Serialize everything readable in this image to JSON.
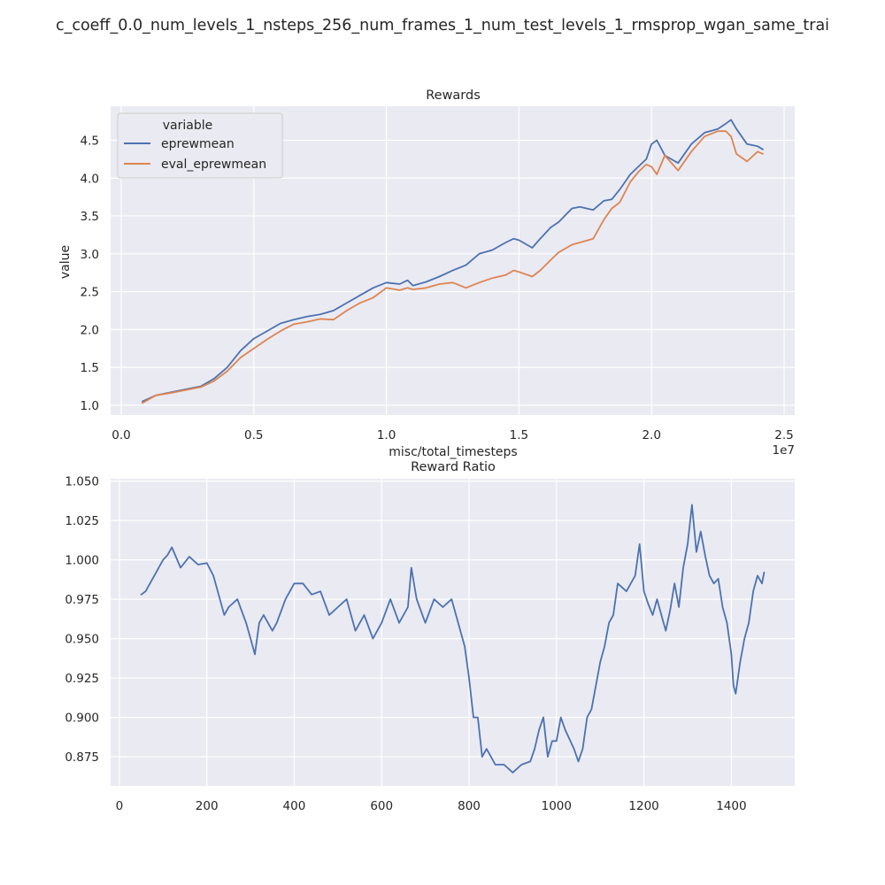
{
  "figure": {
    "suptitle": "c_coeff_0.0_num_levels_1_nsteps_256_num_frames_1_num_test_levels_1_rmsprop_wgan_same_trai"
  },
  "colors": {
    "plot_bg": "#eaeaf2",
    "grid": "#ffffff",
    "text": "#262626",
    "blue": "#4c72b0",
    "orange": "#dd8452"
  },
  "chart_data": [
    {
      "type": "line",
      "title": "Rewards",
      "xlabel": "misc/total_timesteps",
      "ylabel": "value",
      "x_offset_label": "1e7",
      "xlim": [
        -0.04,
        2.54
      ],
      "ylim": [
        0.87,
        4.95
      ],
      "xticks": [
        0.0,
        0.5,
        1.0,
        1.5,
        2.0,
        2.5
      ],
      "xtick_labels": [
        "0.0",
        "0.5",
        "1.0",
        "1.5",
        "2.0",
        "2.5"
      ],
      "yticks": [
        1.0,
        1.5,
        2.0,
        2.5,
        3.0,
        3.5,
        4.0,
        4.5
      ],
      "ytick_labels": [
        "1.0",
        "1.5",
        "2.0",
        "2.5",
        "3.0",
        "3.5",
        "4.0",
        "4.5"
      ],
      "grid": true,
      "legend": {
        "title": "variable",
        "position": "upper-left"
      },
      "series": [
        {
          "name": "eprewmean",
          "color": "#4c72b0",
          "x": [
            0.08,
            0.13,
            0.2,
            0.3,
            0.35,
            0.4,
            0.45,
            0.5,
            0.55,
            0.6,
            0.65,
            0.7,
            0.75,
            0.8,
            0.85,
            0.9,
            0.95,
            1.0,
            1.05,
            1.08,
            1.1,
            1.15,
            1.2,
            1.25,
            1.3,
            1.35,
            1.4,
            1.45,
            1.48,
            1.5,
            1.55,
            1.58,
            1.62,
            1.65,
            1.7,
            1.73,
            1.78,
            1.82,
            1.85,
            1.88,
            1.92,
            1.95,
            1.98,
            2.0,
            2.02,
            2.05,
            2.1,
            2.15,
            2.2,
            2.25,
            2.28,
            2.3,
            2.32,
            2.36,
            2.4,
            2.42
          ],
          "y": [
            1.05,
            1.13,
            1.18,
            1.25,
            1.35,
            1.5,
            1.72,
            1.88,
            1.98,
            2.08,
            2.13,
            2.17,
            2.2,
            2.25,
            2.35,
            2.45,
            2.55,
            2.62,
            2.6,
            2.65,
            2.58,
            2.63,
            2.7,
            2.78,
            2.85,
            3.0,
            3.05,
            3.15,
            3.2,
            3.18,
            3.08,
            3.2,
            3.35,
            3.42,
            3.6,
            3.62,
            3.58,
            3.7,
            3.72,
            3.85,
            4.05,
            4.15,
            4.25,
            4.45,
            4.5,
            4.3,
            4.2,
            4.45,
            4.6,
            4.65,
            4.72,
            4.77,
            4.65,
            4.45,
            4.42,
            4.38
          ]
        },
        {
          "name": "eval_eprewmean",
          "color": "#dd8452",
          "x": [
            0.08,
            0.13,
            0.2,
            0.3,
            0.35,
            0.4,
            0.45,
            0.5,
            0.55,
            0.6,
            0.65,
            0.7,
            0.75,
            0.8,
            0.85,
            0.9,
            0.95,
            1.0,
            1.05,
            1.08,
            1.1,
            1.15,
            1.2,
            1.25,
            1.3,
            1.35,
            1.4,
            1.45,
            1.48,
            1.5,
            1.55,
            1.58,
            1.62,
            1.65,
            1.7,
            1.73,
            1.78,
            1.82,
            1.85,
            1.88,
            1.92,
            1.95,
            1.98,
            2.0,
            2.02,
            2.05,
            2.1,
            2.15,
            2.2,
            2.25,
            2.28,
            2.3,
            2.32,
            2.36,
            2.4,
            2.42
          ],
          "y": [
            1.03,
            1.13,
            1.17,
            1.24,
            1.32,
            1.45,
            1.63,
            1.75,
            1.87,
            1.98,
            2.07,
            2.1,
            2.14,
            2.13,
            2.25,
            2.35,
            2.42,
            2.55,
            2.52,
            2.55,
            2.53,
            2.55,
            2.6,
            2.62,
            2.55,
            2.62,
            2.68,
            2.72,
            2.78,
            2.76,
            2.7,
            2.78,
            2.92,
            3.02,
            3.12,
            3.15,
            3.2,
            3.45,
            3.6,
            3.68,
            3.95,
            4.08,
            4.18,
            4.15,
            4.05,
            4.3,
            4.1,
            4.35,
            4.55,
            4.62,
            4.62,
            4.55,
            4.32,
            4.22,
            4.35,
            4.32
          ]
        }
      ]
    },
    {
      "type": "line",
      "title": "Reward Ratio",
      "xlabel": "",
      "ylabel": "",
      "xlim": [
        -20,
        1545
      ],
      "ylim": [
        0.8565,
        1.0515
      ],
      "xticks": [
        0,
        200,
        400,
        600,
        800,
        1000,
        1200,
        1400
      ],
      "xtick_labels": [
        "0",
        "200",
        "400",
        "600",
        "800",
        "1000",
        "1200",
        "1400"
      ],
      "yticks": [
        0.875,
        0.9,
        0.925,
        0.95,
        0.975,
        1.0,
        1.025,
        1.05
      ],
      "ytick_labels": [
        "0.875",
        "0.900",
        "0.925",
        "0.950",
        "0.975",
        "1.000",
        "1.025",
        "1.050"
      ],
      "grid": true,
      "series": [
        {
          "color": "#4c72b0",
          "x": [
            50,
            60,
            80,
            100,
            110,
            120,
            140,
            160,
            180,
            200,
            215,
            230,
            240,
            250,
            270,
            290,
            300,
            310,
            320,
            330,
            340,
            350,
            360,
            380,
            400,
            420,
            440,
            460,
            480,
            500,
            520,
            540,
            560,
            580,
            600,
            620,
            640,
            660,
            668,
            680,
            700,
            720,
            740,
            760,
            775,
            790,
            800,
            810,
            820,
            830,
            840,
            860,
            880,
            900,
            920,
            940,
            950,
            960,
            970,
            980,
            990,
            1000,
            1010,
            1020,
            1040,
            1050,
            1060,
            1070,
            1080,
            1100,
            1110,
            1120,
            1130,
            1140,
            1160,
            1180,
            1190,
            1200,
            1210,
            1220,
            1230,
            1250,
            1260,
            1270,
            1280,
            1290,
            1300,
            1310,
            1320,
            1330,
            1340,
            1350,
            1360,
            1370,
            1380,
            1390,
            1400,
            1405,
            1410,
            1420,
            1430,
            1440,
            1450,
            1460,
            1470,
            1475
          ],
          "y": [
            0.978,
            0.98,
            0.99,
            1.0,
            1.003,
            1.008,
            0.995,
            1.002,
            0.997,
            0.998,
            0.99,
            0.975,
            0.965,
            0.97,
            0.975,
            0.96,
            0.95,
            0.94,
            0.96,
            0.965,
            0.96,
            0.955,
            0.96,
            0.975,
            0.985,
            0.985,
            0.978,
            0.98,
            0.965,
            0.97,
            0.975,
            0.955,
            0.965,
            0.95,
            0.96,
            0.975,
            0.96,
            0.97,
            0.995,
            0.975,
            0.96,
            0.975,
            0.97,
            0.975,
            0.96,
            0.945,
            0.925,
            0.9,
            0.9,
            0.875,
            0.88,
            0.87,
            0.87,
            0.865,
            0.87,
            0.872,
            0.88,
            0.892,
            0.9,
            0.875,
            0.885,
            0.885,
            0.9,
            0.892,
            0.88,
            0.872,
            0.88,
            0.9,
            0.905,
            0.935,
            0.945,
            0.96,
            0.965,
            0.985,
            0.98,
            0.99,
            1.01,
            0.98,
            0.972,
            0.965,
            0.975,
            0.955,
            0.968,
            0.985,
            0.97,
            0.995,
            1.01,
            1.035,
            1.005,
            1.018,
            1.003,
            0.99,
            0.985,
            0.988,
            0.97,
            0.96,
            0.94,
            0.92,
            0.915,
            0.935,
            0.95,
            0.96,
            0.98,
            0.99,
            0.985,
            0.992
          ]
        }
      ]
    }
  ]
}
